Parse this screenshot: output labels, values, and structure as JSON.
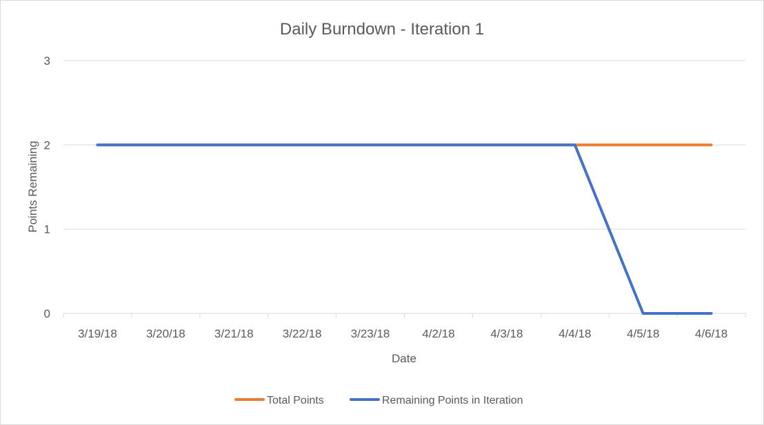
{
  "chart_data": {
    "type": "line",
    "title": "Daily Burndown - Iteration 1",
    "xlabel": "Date",
    "ylabel": "Points Remaining",
    "categories": [
      "3/19/18",
      "3/20/18",
      "3/21/18",
      "3/22/18",
      "3/23/18",
      "4/2/18",
      "4/3/18",
      "4/4/18",
      "4/5/18",
      "4/6/18"
    ],
    "series": [
      {
        "name": "Total Points",
        "color": "#ED7D31",
        "values": [
          2,
          2,
          2,
          2,
          2,
          2,
          2,
          2,
          2,
          2
        ]
      },
      {
        "name": "Remaining Points in Iteration",
        "color": "#4472C4",
        "values": [
          2,
          2,
          2,
          2,
          2,
          2,
          2,
          2,
          0,
          0
        ]
      }
    ],
    "ylim": [
      0,
      3
    ],
    "yticks": [
      "0",
      "1",
      "2",
      "3"
    ],
    "grid": true,
    "legend": "bottom"
  }
}
